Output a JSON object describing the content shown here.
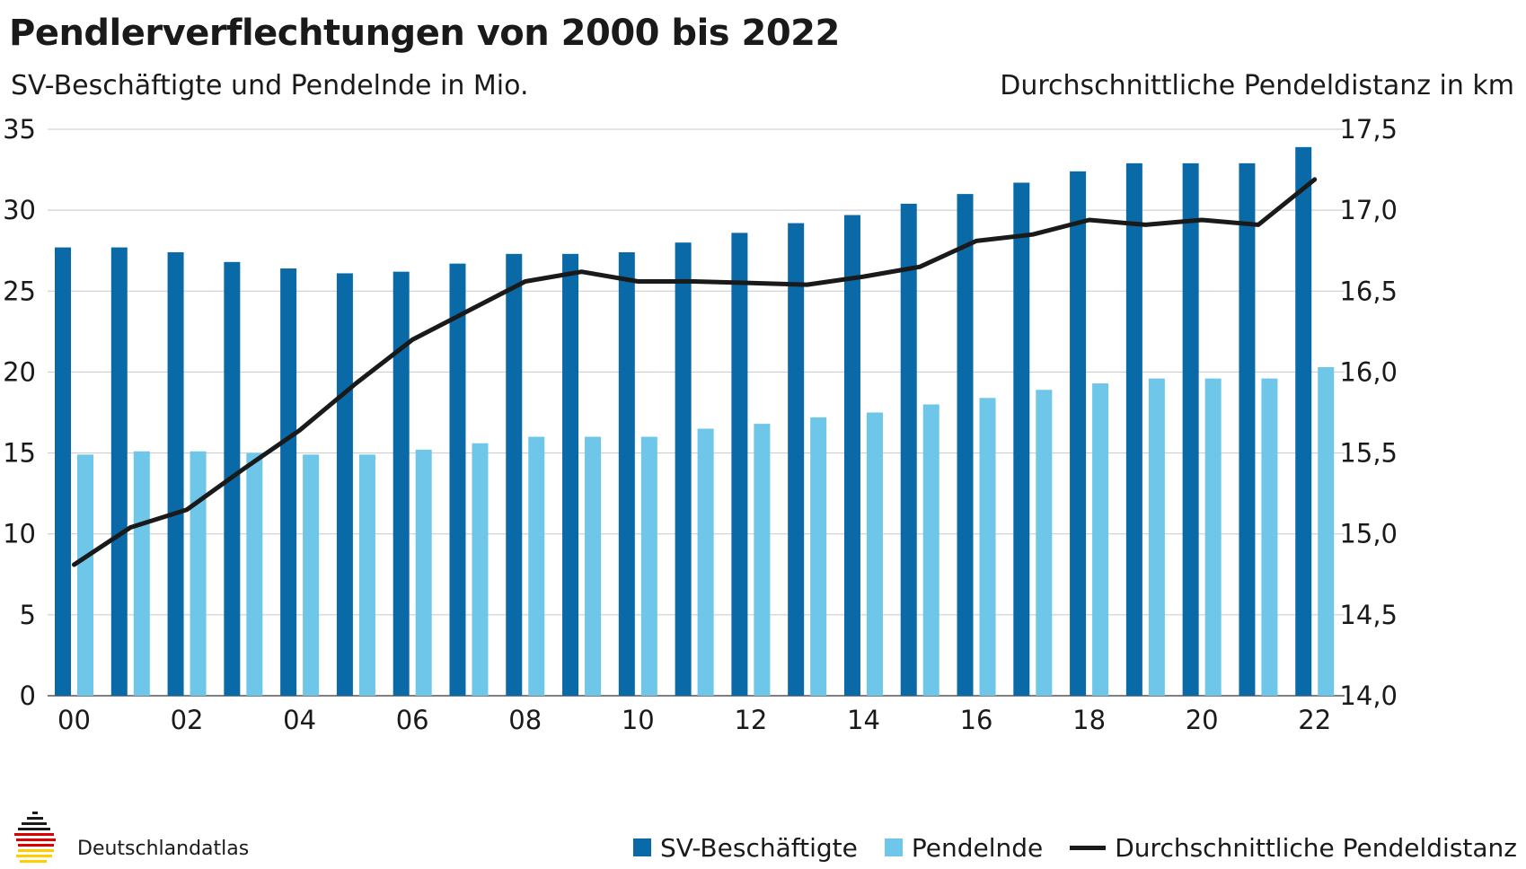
{
  "header": {
    "title": "Pendlerverflechtungen von 2000 bis 2022",
    "subtitle_left": "SV-Beschäftigte und Pendelnde in Mio.",
    "subtitle_right": "Durchschnittliche Pendeldistanz in km"
  },
  "footer": {
    "logo_text": "Deutschlandatlas"
  },
  "legend": {
    "sv": "SV-Beschäftigte",
    "pend": "Pendelnde",
    "dist": "Durchschnittliche Pendeldistanz"
  },
  "colors": {
    "sv": "#0a6aa8",
    "pend": "#6ec6e8",
    "line": "#1a1a1a",
    "grid": "#c8c8c8",
    "flag_black": "#1a1a1a",
    "flag_red": "#dd0000",
    "flag_gold": "#ffce00"
  },
  "chart_data": {
    "type": "bar",
    "categories": [
      "00",
      "01",
      "02",
      "03",
      "04",
      "05",
      "06",
      "07",
      "08",
      "09",
      "10",
      "11",
      "12",
      "13",
      "14",
      "15",
      "16",
      "17",
      "18",
      "19",
      "20",
      "21",
      "22"
    ],
    "x_tick_labels": [
      "00",
      "",
      "02",
      "",
      "04",
      "",
      "06",
      "",
      "08",
      "",
      "10",
      "",
      "12",
      "",
      "14",
      "",
      "16",
      "",
      "18",
      "",
      "20",
      "",
      "22"
    ],
    "series": [
      {
        "name": "SV-Beschäftigte",
        "type": "bar",
        "axis": "left",
        "values": [
          27.7,
          27.7,
          27.4,
          26.8,
          26.4,
          26.1,
          26.2,
          26.7,
          27.3,
          27.3,
          27.4,
          28.0,
          28.6,
          29.2,
          29.7,
          30.4,
          31.0,
          31.7,
          32.4,
          32.9,
          32.9,
          32.9,
          33.9
        ]
      },
      {
        "name": "Pendelnde",
        "type": "bar",
        "axis": "left",
        "values": [
          14.9,
          15.1,
          15.1,
          15.0,
          14.9,
          14.9,
          15.2,
          15.6,
          16.0,
          16.0,
          16.0,
          16.5,
          16.8,
          17.2,
          17.5,
          18.0,
          18.4,
          18.9,
          19.3,
          19.6,
          19.6,
          19.6,
          20.3
        ]
      },
      {
        "name": "Durchschnittliche Pendeldistanz",
        "type": "line",
        "axis": "right",
        "values": [
          14.81,
          15.04,
          15.15,
          15.4,
          15.64,
          15.93,
          16.2,
          16.38,
          16.56,
          16.62,
          16.56,
          16.56,
          16.55,
          16.54,
          16.59,
          16.65,
          16.81,
          16.85,
          16.94,
          16.91,
          16.94,
          16.91,
          17.19
        ]
      }
    ],
    "y_left": {
      "ylim": [
        0,
        35
      ],
      "ticks": [
        "0",
        "5",
        "10",
        "15",
        "20",
        "25",
        "30",
        "35"
      ]
    },
    "y_right": {
      "ylim": [
        14.0,
        17.5
      ],
      "ticks": [
        "14,0",
        "14,5",
        "15,0",
        "15,5",
        "16,0",
        "16,5",
        "17,0",
        "17,5"
      ]
    },
    "grid": true,
    "legend_position": "bottom-right"
  }
}
